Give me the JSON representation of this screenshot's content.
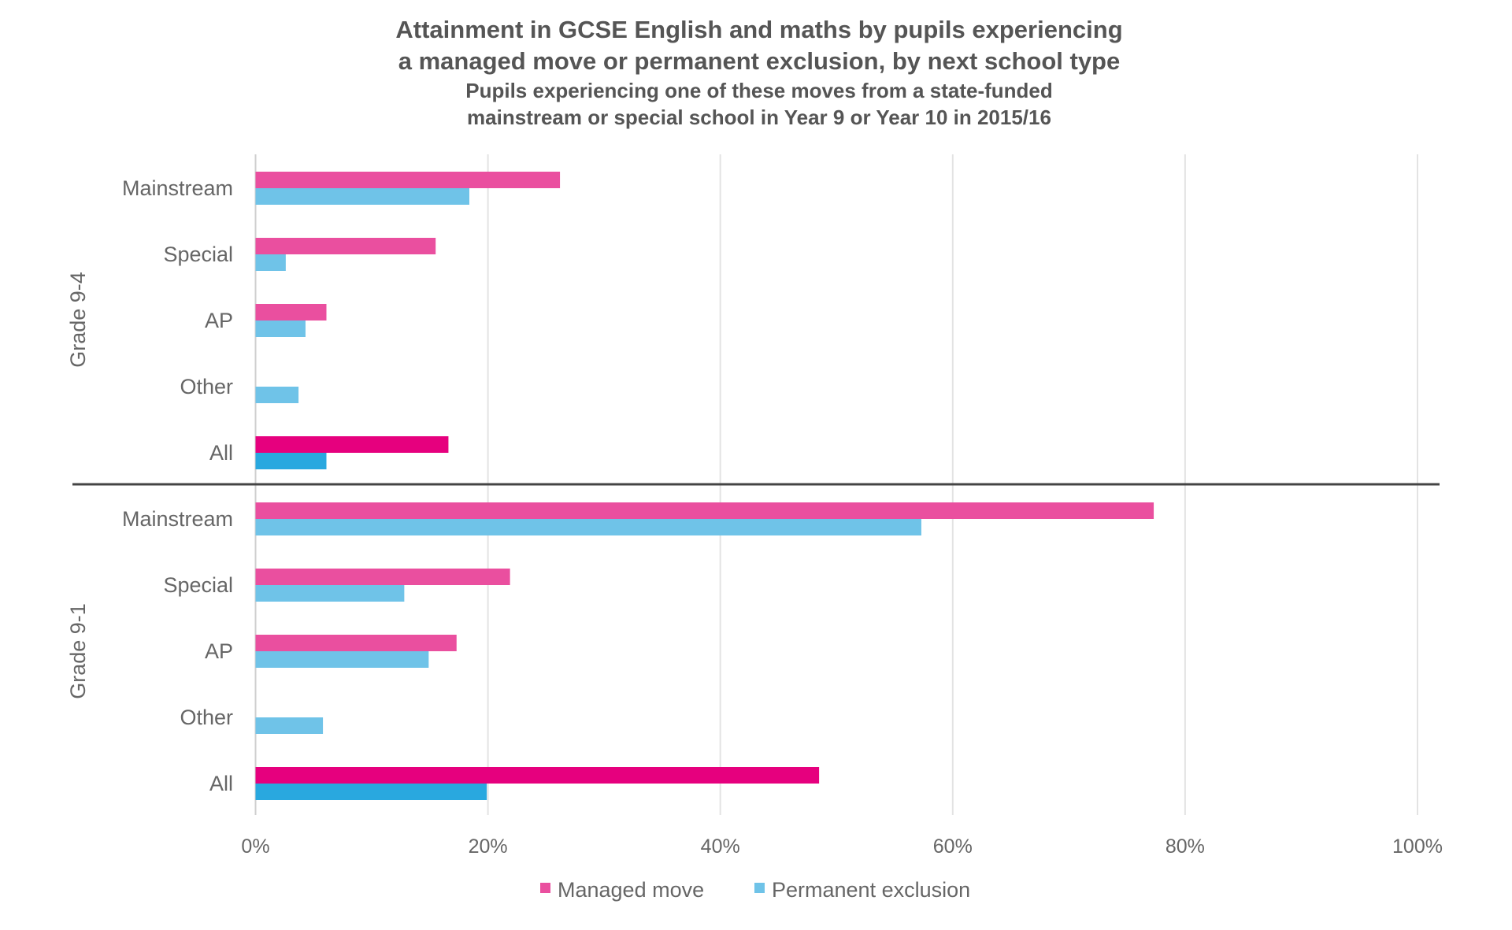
{
  "chart_data": {
    "type": "bar",
    "orientation": "horizontal",
    "title": "Attainment in GCSE English and maths by pupils experiencing a managed move or permanent exclusion, by next school type",
    "title_lines": [
      "Attainment in GCSE English and maths by pupils experiencing",
      "a managed move or permanent exclusion, by next school type"
    ],
    "subtitle_lines": [
      "Pupils experiencing one of these moves from a state-funded",
      "mainstream or special school in Year 9 or Year 10 in 2015/16"
    ],
    "xlim": [
      0,
      100
    ],
    "x_ticks": [
      "0%",
      "20%",
      "40%",
      "60%",
      "80%",
      "100%"
    ],
    "grid": true,
    "legend_position": "bottom",
    "colors": {
      "managed": "#ea4f9f",
      "managed_all": "#e6007e",
      "excluded": "#6fc3e8",
      "excluded_all": "#29a8df"
    },
    "groups": [
      {
        "name": "Grade 9-4",
        "categories": [
          "Mainstream",
          "Special",
          "AP",
          "Other",
          "All"
        ],
        "series": [
          {
            "name": "Managed move",
            "values": [
              26.2,
              15.5,
              6.1,
              null,
              16.6
            ]
          },
          {
            "name": "Permanent exclusion",
            "values": [
              18.4,
              2.6,
              4.3,
              3.7,
              6.1
            ]
          }
        ]
      },
      {
        "name": "Grade 9-1",
        "categories": [
          "Mainstream",
          "Special",
          "AP",
          "Other",
          "All"
        ],
        "series": [
          {
            "name": "Managed move",
            "values": [
              77.3,
              21.9,
              17.3,
              null,
              48.5
            ]
          },
          {
            "name": "Permanent exclusion",
            "values": [
              57.3,
              12.8,
              14.9,
              5.8,
              19.9
            ]
          }
        ]
      }
    ],
    "legend": [
      "Managed move",
      "Permanent exclusion"
    ]
  }
}
